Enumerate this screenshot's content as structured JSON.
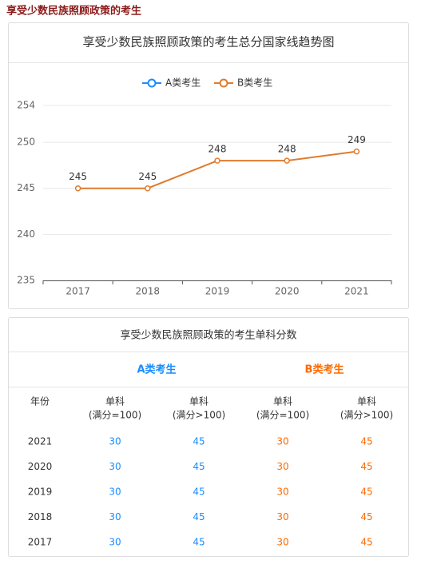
{
  "header": {
    "title": "享受少数民族照顾政策的考生"
  },
  "chart_data": {
    "type": "line",
    "title": "享受少数民族照顾政策的考生总分国家线趋势图",
    "categories": [
      "2017",
      "2018",
      "2019",
      "2020",
      "2021"
    ],
    "series": [
      {
        "name": "A类考生",
        "color": "#1a8cff",
        "values": [
          null,
          null,
          null,
          null,
          null
        ]
      },
      {
        "name": "B类考生",
        "color": "#e07b2e",
        "values": [
          245,
          245,
          248,
          248,
          249
        ]
      }
    ],
    "ylim": [
      235,
      254
    ],
    "yticks": [
      235,
      240,
      245,
      250,
      254
    ],
    "grid": true,
    "legend": "top"
  },
  "table": {
    "title": "享受少数民族照顾政策的考生单科分数",
    "groups": [
      {
        "name": "A类考生",
        "color": "#1a8cff"
      },
      {
        "name": "B类考生",
        "color": "#ff6a00"
      }
    ],
    "header": [
      "年份",
      [
        "单科",
        "(满分=100)"
      ],
      [
        "单科",
        "(满分>100)"
      ],
      [
        "单科",
        "(满分=100)"
      ],
      [
        "单科",
        "(满分>100)"
      ]
    ],
    "rows": [
      [
        "2021",
        "30",
        "45",
        "30",
        "45"
      ],
      [
        "2020",
        "30",
        "45",
        "30",
        "45"
      ],
      [
        "2019",
        "30",
        "45",
        "30",
        "45"
      ],
      [
        "2018",
        "30",
        "45",
        "30",
        "45"
      ],
      [
        "2017",
        "30",
        "45",
        "30",
        "45"
      ]
    ]
  }
}
